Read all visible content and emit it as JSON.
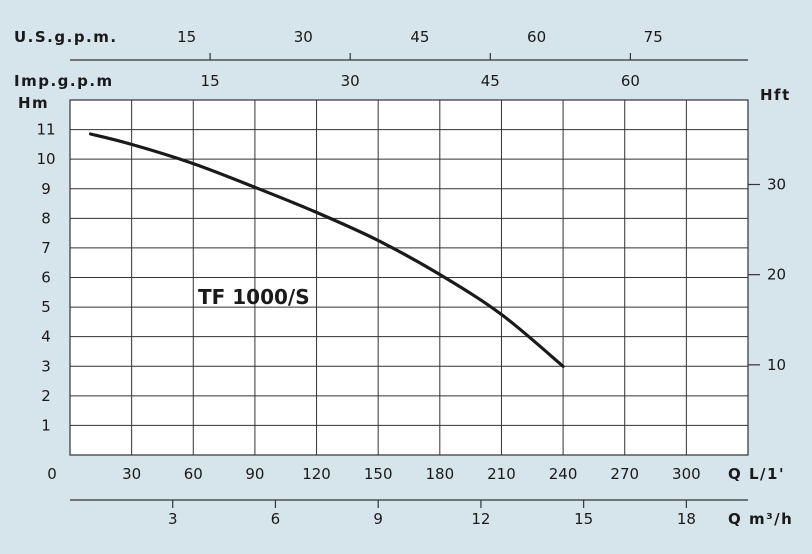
{
  "chart_data": {
    "type": "line",
    "title": "",
    "series": [
      {
        "name": "TF 1000/S",
        "x": [
          10,
          30,
          60,
          90,
          120,
          150,
          180,
          210,
          240
        ],
        "y": [
          10.85,
          10.5,
          9.85,
          9.05,
          8.2,
          7.25,
          6.1,
          4.75,
          3.0
        ]
      }
    ],
    "axes": {
      "x_lmin": {
        "label": "Q L/1'",
        "range": [
          0,
          330
        ],
        "ticks": [
          0,
          30,
          60,
          90,
          120,
          150,
          180,
          210,
          240,
          270,
          300
        ]
      },
      "x_m3h": {
        "label": "Q m³/h",
        "ticks": [
          3,
          6,
          9,
          12,
          15,
          18
        ]
      },
      "x_imp_gpm": {
        "label": "Imp.g.p.m",
        "ticks": [
          15,
          30,
          45,
          60
        ]
      },
      "x_us_gpm": {
        "label": "U.S.g.p.m.",
        "ticks": [
          15,
          30,
          45,
          60,
          75
        ]
      },
      "y_m": {
        "label": "Hm",
        "range": [
          0,
          12
        ],
        "ticks": [
          1,
          2,
          3,
          4,
          5,
          6,
          7,
          8,
          9,
          10,
          11
        ]
      },
      "y_ft": {
        "label": "Hft",
        "ticks": [
          10,
          20,
          30
        ]
      }
    },
    "grid": true,
    "colors": {
      "background": "#d6e4ec",
      "plot_area": "#ffffff",
      "grid": "#333333",
      "curve": "#1a1a1a"
    }
  }
}
